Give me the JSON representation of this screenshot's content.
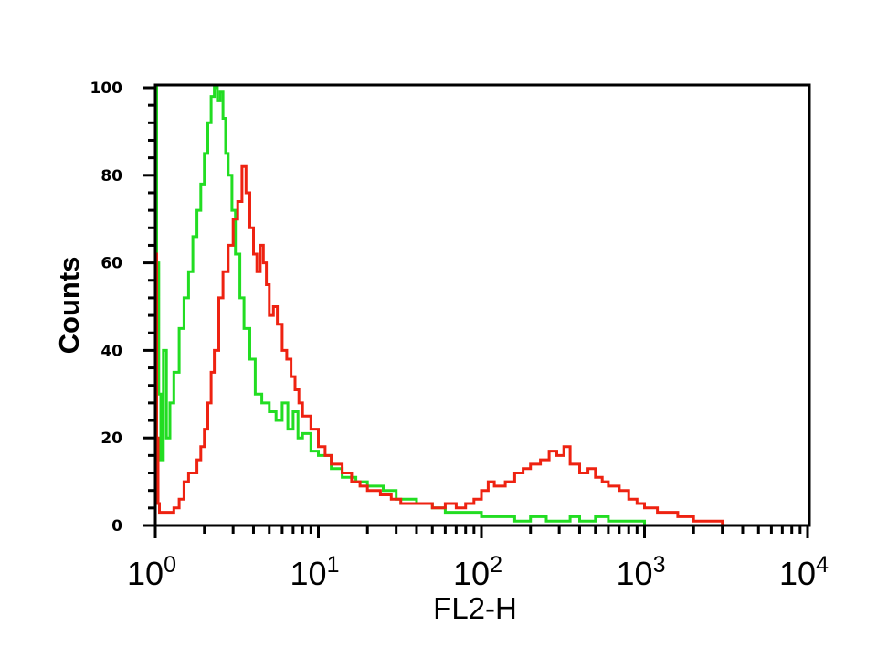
{
  "chart_data": {
    "type": "line",
    "title": "",
    "xlabel": "FL2-H",
    "ylabel": "Counts",
    "x_scale": "log",
    "xlim": [
      1,
      10000
    ],
    "ylim": [
      0,
      100
    ],
    "y_ticks": [
      "0",
      "20",
      "40",
      "60",
      "80",
      "100"
    ],
    "x_ticks": [
      {
        "base": "10",
        "exp": "0"
      },
      {
        "base": "10",
        "exp": "1"
      },
      {
        "base": "10",
        "exp": "2"
      },
      {
        "base": "10",
        "exp": "3"
      },
      {
        "base": "10",
        "exp": "4"
      }
    ],
    "grid": false,
    "legend": "none",
    "series": [
      {
        "color": "#22dd22",
        "x": [
          1.0,
          1.02,
          1.05,
          1.08,
          1.12,
          1.17,
          1.23,
          1.3,
          1.4,
          1.5,
          1.6,
          1.7,
          1.8,
          1.9,
          2.0,
          2.1,
          2.2,
          2.3,
          2.4,
          2.5,
          2.6,
          2.7,
          2.8,
          2.95,
          3.1,
          3.3,
          3.5,
          3.8,
          4.1,
          4.5,
          5.0,
          5.5,
          6.0,
          6.5,
          7.0,
          7.5,
          8.0,
          9.0,
          10.0,
          12.0,
          14.0,
          17.0,
          20.0,
          25.0,
          30.0,
          40.0,
          50.0,
          60.0,
          80.0,
          100.0,
          130.0,
          160.0,
          200.0,
          250.0,
          300.0,
          350.0,
          400.0,
          450.0,
          500.0,
          600.0,
          800.0,
          1000.0,
          1500.0,
          2000.0,
          5000.0,
          10000.0
        ],
        "values": [
          100,
          60,
          30,
          15,
          40,
          20,
          28,
          35,
          45,
          52,
          58,
          66,
          72,
          78,
          85,
          92,
          98,
          100,
          97,
          99,
          93,
          85,
          80,
          72,
          62,
          52,
          45,
          38,
          30,
          28,
          26,
          24,
          28,
          22,
          26,
          20,
          21,
          17,
          16,
          13,
          11,
          10,
          9,
          8,
          6,
          5,
          4,
          3,
          3,
          2,
          2,
          1,
          2,
          1,
          1,
          2,
          1,
          1,
          2,
          1,
          1,
          0,
          0,
          0,
          0,
          0
        ]
      },
      {
        "color": "#ee2211",
        "x": [
          1.0,
          1.02,
          1.04,
          1.06,
          1.1,
          1.15,
          1.2,
          1.3,
          1.4,
          1.5,
          1.6,
          1.7,
          1.8,
          1.9,
          2.0,
          2.1,
          2.2,
          2.3,
          2.45,
          2.6,
          2.8,
          3.0,
          3.2,
          3.4,
          3.6,
          3.8,
          4.0,
          4.2,
          4.4,
          4.6,
          4.8,
          5.0,
          5.3,
          5.6,
          6.0,
          6.4,
          6.8,
          7.2,
          7.6,
          8.0,
          9.0,
          10.0,
          11.0,
          12.0,
          14.0,
          16.0,
          18.0,
          20.0,
          24.0,
          28.0,
          32.0,
          40.0,
          50.0,
          60.0,
          70.0,
          80.0,
          90.0,
          100.0,
          110.0,
          120.0,
          140.0,
          160.0,
          180.0,
          200.0,
          230.0,
          260.0,
          290.0,
          320.0,
          350.0,
          400.0,
          450.0,
          500.0,
          550.0,
          600.0,
          700.0,
          800.0,
          900.0,
          1000.0,
          1200.0,
          1400.0,
          1600.0,
          1800.0,
          2000.0,
          3000.0,
          5000.0,
          10000.0
        ],
        "values": [
          62,
          20,
          5,
          3,
          3,
          3,
          3,
          4,
          6,
          10,
          12,
          12,
          15,
          18,
          22,
          28,
          35,
          40,
          52,
          58,
          64,
          70,
          74,
          82,
          76,
          68,
          62,
          58,
          64,
          60,
          55,
          48,
          50,
          46,
          40,
          38,
          34,
          31,
          28,
          25,
          22,
          18,
          16,
          14,
          12,
          10,
          9,
          8,
          7,
          6,
          5,
          5,
          4,
          5,
          4,
          5,
          6,
          8,
          10,
          9,
          10,
          12,
          13,
          14,
          15,
          17,
          16,
          18,
          14,
          12,
          13,
          11,
          10,
          9,
          8,
          6,
          5,
          4,
          3,
          3,
          2,
          2,
          1,
          0,
          0,
          0
        ]
      }
    ]
  }
}
